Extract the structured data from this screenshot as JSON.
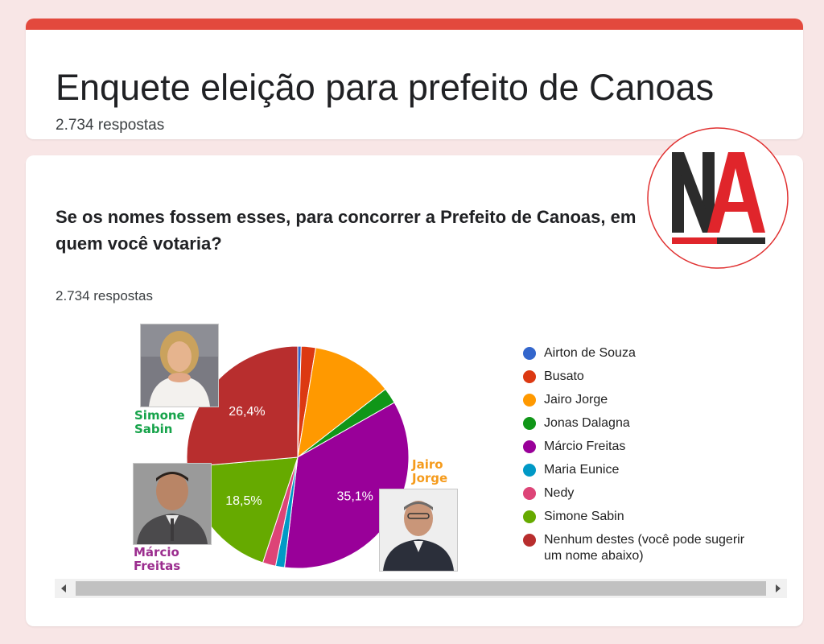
{
  "form": {
    "title": "Enquete eleição para prefeito de Canoas",
    "responses": "2.734 respostas"
  },
  "question": {
    "text": "Se os nomes fossem esses, para concorrer a Prefeito de Canoas, em quem você votaria?",
    "responses": "2.734 respostas"
  },
  "logo": {
    "text": "NA",
    "colors": {
      "n": "#2b2b2b",
      "a": "#e0252b",
      "ring": "#e03030"
    }
  },
  "captions": {
    "simone": "Simone Sabin",
    "jairo": "Jairo Jorge",
    "marcio": "Márcio Freitas"
  },
  "caption_colors": {
    "simone": "#16a34a",
    "jairo": "#f59b1c",
    "marcio": "#9b2d8e"
  },
  "chart_data": {
    "type": "pie",
    "title": "",
    "start_angle_deg": 0,
    "slices": [
      {
        "label": "Airton de Souza",
        "value": 0.5,
        "color": "#3366cc",
        "show_label": false
      },
      {
        "label": "Busato",
        "value": 2.1,
        "color": "#dc3912",
        "show_label": false
      },
      {
        "label": "Jairo Jorge",
        "value": 11.9,
        "color": "#ff9900",
        "show_label": false
      },
      {
        "label": "Jonas Dalagna",
        "value": 2.3,
        "color": "#109618",
        "show_label": false
      },
      {
        "label": "Márcio Freitas",
        "value": 35.1,
        "color": "#990099",
        "show_label": true,
        "display": "35,1%"
      },
      {
        "label": "Maria Eunice",
        "value": 1.3,
        "color": "#0099c6",
        "show_label": false
      },
      {
        "label": "Nedy",
        "value": 1.9,
        "color": "#dd4477",
        "show_label": false
      },
      {
        "label": "Simone Sabin",
        "value": 18.5,
        "color": "#66aa00",
        "show_label": true,
        "display": "18,5%"
      },
      {
        "label": "Nenhum destes (você pode sugerir um nome abaixo)",
        "value": 26.4,
        "color": "#b82e2e",
        "show_label": true,
        "display": "26,4%"
      }
    ],
    "legend_position": "right"
  },
  "scroll": {
    "left_icon": "chevron-left-icon",
    "right_icon": "chevron-right-icon"
  }
}
